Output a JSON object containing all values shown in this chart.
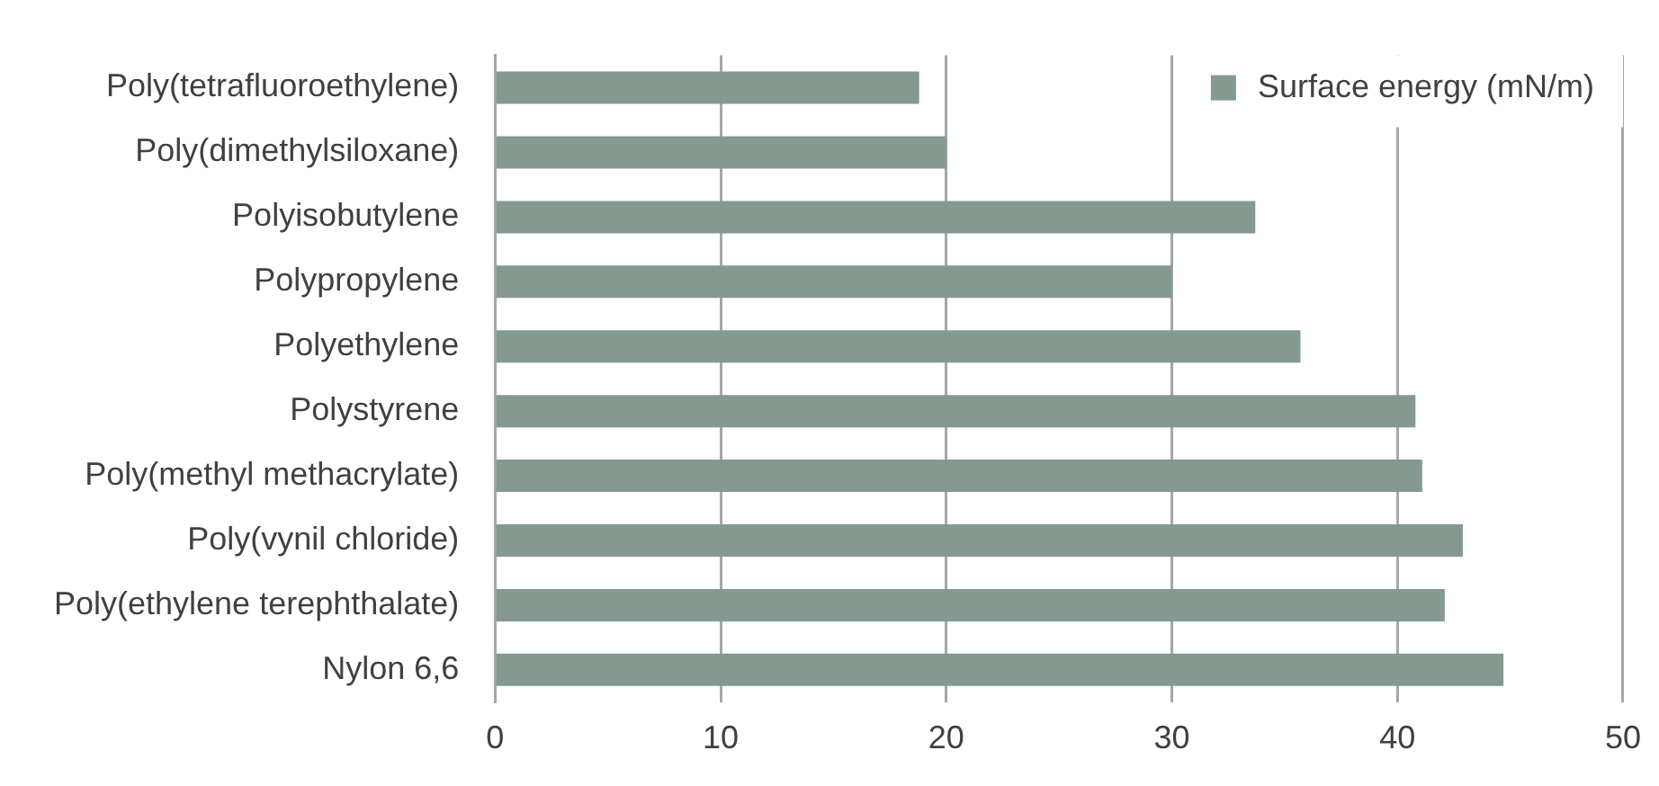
{
  "chart_data": {
    "type": "bar",
    "orientation": "horizontal",
    "categories": [
      "Poly(tetrafluoroethylene)",
      "Poly(dimethylsiloxane)",
      "Polyisobutylene",
      "Polypropylene",
      "Polyethylene",
      "Polystyrene",
      "Poly(methyl methacrylate)",
      "Poly(vynil chloride)",
      "Poly(ethylene terephthalate)",
      "Nylon 6,6"
    ],
    "series": [
      {
        "name": "Surface energy (mN/m)",
        "color": "#84998f",
        "values": [
          18.8,
          20.0,
          33.7,
          30.0,
          35.7,
          40.8,
          41.1,
          42.9,
          42.1,
          44.7
        ]
      }
    ],
    "xlim": [
      0,
      50
    ],
    "xticks": [
      0,
      10,
      20,
      30,
      40,
      50
    ],
    "grid": "x",
    "legend": "top right"
  }
}
